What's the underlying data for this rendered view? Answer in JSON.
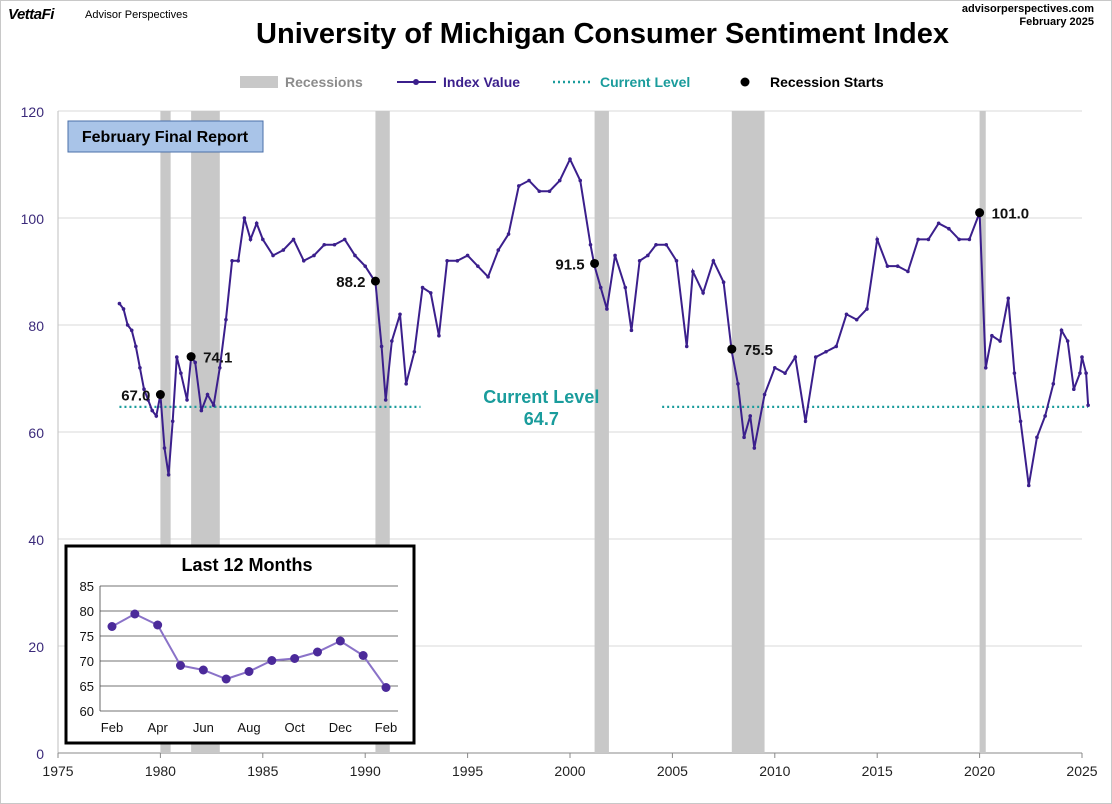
{
  "header": {
    "brand": "VettaFi",
    "brand_sub": "Advisor Perspectives",
    "site": "advisorperspectives.com",
    "date": "February 2025"
  },
  "chart_data": [
    {
      "type": "line",
      "title": "University of Michigan Consumer Sentiment Index",
      "xlim": [
        1975,
        2025
      ],
      "ylim": [
        0,
        120
      ],
      "x_ticks": [
        "1975",
        "1980",
        "1985",
        "1990",
        "1995",
        "2000",
        "2005",
        "2010",
        "2015",
        "2020",
        "2025"
      ],
      "y_ticks": [
        "0",
        "20",
        "40",
        "60",
        "80",
        "100",
        "120"
      ],
      "grid": true,
      "legend": {
        "position": "top",
        "items": [
          {
            "label": "Recessions",
            "color": "#c8c8c8"
          },
          {
            "label": "Index Value",
            "color": "#3b1f8c"
          },
          {
            "label": "Current Level",
            "color": "#1a9c9c"
          },
          {
            "label": "Recession Starts",
            "color": "#000000"
          }
        ]
      },
      "report_label": "February Final Report",
      "current_level": {
        "label": "Current Level",
        "value": 64.7,
        "value_label": "64.7"
      },
      "recessions": [
        {
          "start": 1980.0,
          "end": 1980.5
        },
        {
          "start": 1981.5,
          "end": 1982.9
        },
        {
          "start": 1990.5,
          "end": 1991.2
        },
        {
          "start": 2001.2,
          "end": 2001.9
        },
        {
          "start": 2007.9,
          "end": 2009.5
        },
        {
          "start": 2020.0,
          "end": 2020.3
        }
      ],
      "recession_starts": [
        {
          "x": 1980.0,
          "y": 67.0,
          "label": "67.0",
          "anchor": "left"
        },
        {
          "x": 1981.5,
          "y": 74.1,
          "label": "74.1",
          "anchor": "right"
        },
        {
          "x": 1990.5,
          "y": 88.2,
          "label": "88.2",
          "anchor": "left"
        },
        {
          "x": 2001.2,
          "y": 91.5,
          "label": "91.5",
          "anchor": "left"
        },
        {
          "x": 2007.9,
          "y": 75.5,
          "label": "75.5",
          "anchor": "right"
        },
        {
          "x": 2020.0,
          "y": 101.0,
          "label": "101.0",
          "anchor": "right"
        }
      ],
      "series": [
        {
          "name": "Index Value",
          "color": "#3b1f8c",
          "points": [
            [
              1978.0,
              84
            ],
            [
              1978.2,
              83
            ],
            [
              1978.4,
              80
            ],
            [
              1978.6,
              79
            ],
            [
              1978.8,
              76
            ],
            [
              1979.0,
              72
            ],
            [
              1979.2,
              68
            ],
            [
              1979.4,
              66
            ],
            [
              1979.6,
              64
            ],
            [
              1979.8,
              63
            ],
            [
              1980.0,
              67
            ],
            [
              1980.2,
              57
            ],
            [
              1980.4,
              52
            ],
            [
              1980.6,
              62
            ],
            [
              1980.8,
              74
            ],
            [
              1981.0,
              71
            ],
            [
              1981.3,
              66
            ],
            [
              1981.5,
              74
            ],
            [
              1981.7,
              73
            ],
            [
              1982.0,
              64
            ],
            [
              1982.3,
              67
            ],
            [
              1982.6,
              65
            ],
            [
              1982.9,
              72
            ],
            [
              1983.2,
              81
            ],
            [
              1983.5,
              92
            ],
            [
              1983.8,
              92
            ],
            [
              1984.1,
              100
            ],
            [
              1984.4,
              96
            ],
            [
              1984.7,
              99
            ],
            [
              1985.0,
              96
            ],
            [
              1985.5,
              93
            ],
            [
              1986.0,
              94
            ],
            [
              1986.5,
              96
            ],
            [
              1987.0,
              92
            ],
            [
              1987.5,
              93
            ],
            [
              1988.0,
              95
            ],
            [
              1988.5,
              95
            ],
            [
              1989.0,
              96
            ],
            [
              1989.5,
              93
            ],
            [
              1990.0,
              91
            ],
            [
              1990.5,
              88
            ],
            [
              1990.8,
              76
            ],
            [
              1991.0,
              66
            ],
            [
              1991.3,
              77
            ],
            [
              1991.7,
              82
            ],
            [
              1992.0,
              69
            ],
            [
              1992.4,
              75
            ],
            [
              1992.8,
              87
            ],
            [
              1993.2,
              86
            ],
            [
              1993.6,
              78
            ],
            [
              1994.0,
              92
            ],
            [
              1994.5,
              92
            ],
            [
              1995.0,
              93
            ],
            [
              1995.5,
              91
            ],
            [
              1996.0,
              89
            ],
            [
              1996.5,
              94
            ],
            [
              1997.0,
              97
            ],
            [
              1997.5,
              106
            ],
            [
              1998.0,
              107
            ],
            [
              1998.5,
              105
            ],
            [
              1999.0,
              105
            ],
            [
              1999.5,
              107
            ],
            [
              2000.0,
              111
            ],
            [
              2000.5,
              107
            ],
            [
              2001.0,
              95
            ],
            [
              2001.2,
              91
            ],
            [
              2001.5,
              87
            ],
            [
              2001.8,
              83
            ],
            [
              2002.2,
              93
            ],
            [
              2002.7,
              87
            ],
            [
              2003.0,
              79
            ],
            [
              2003.4,
              92
            ],
            [
              2003.8,
              93
            ],
            [
              2004.2,
              95
            ],
            [
              2004.7,
              95
            ],
            [
              2005.2,
              92
            ],
            [
              2005.7,
              76
            ],
            [
              2006.0,
              90
            ],
            [
              2006.5,
              86
            ],
            [
              2007.0,
              92
            ],
            [
              2007.5,
              88
            ],
            [
              2007.9,
              75
            ],
            [
              2008.2,
              69
            ],
            [
              2008.5,
              59
            ],
            [
              2008.8,
              63
            ],
            [
              2009.0,
              57
            ],
            [
              2009.5,
              67
            ],
            [
              2010.0,
              72
            ],
            [
              2010.5,
              71
            ],
            [
              2011.0,
              74
            ],
            [
              2011.5,
              62
            ],
            [
              2012.0,
              74
            ],
            [
              2012.5,
              75
            ],
            [
              2013.0,
              76
            ],
            [
              2013.5,
              82
            ],
            [
              2014.0,
              81
            ],
            [
              2014.5,
              83
            ],
            [
              2015.0,
              96
            ],
            [
              2015.5,
              91
            ],
            [
              2016.0,
              91
            ],
            [
              2016.5,
              90
            ],
            [
              2017.0,
              96
            ],
            [
              2017.5,
              96
            ],
            [
              2018.0,
              99
            ],
            [
              2018.5,
              98
            ],
            [
              2019.0,
              96
            ],
            [
              2019.5,
              96
            ],
            [
              2020.0,
              101
            ],
            [
              2020.3,
              72
            ],
            [
              2020.6,
              78
            ],
            [
              2021.0,
              77
            ],
            [
              2021.4,
              85
            ],
            [
              2021.7,
              71
            ],
            [
              2022.0,
              62
            ],
            [
              2022.4,
              50
            ],
            [
              2022.8,
              59
            ],
            [
              2023.2,
              63
            ],
            [
              2023.6,
              69
            ],
            [
              2024.0,
              79
            ],
            [
              2024.3,
              77
            ],
            [
              2024.6,
              68
            ],
            [
              2024.9,
              71
            ],
            [
              2025.0,
              74
            ],
            [
              2025.2,
              71
            ],
            [
              2025.3,
              65
            ]
          ]
        }
      ]
    },
    {
      "type": "line",
      "title": "Last 12 Months",
      "categories": [
        "Feb",
        "Mar",
        "Apr",
        "May",
        "Jun",
        "Jul",
        "Aug",
        "Sep",
        "Oct",
        "Nov",
        "Dec",
        "Jan",
        "Feb"
      ],
      "x_tick_labels": [
        "Feb",
        "Apr",
        "Jun",
        "Aug",
        "Oct",
        "Dec",
        "Feb"
      ],
      "ylim": [
        60,
        85
      ],
      "y_ticks": [
        "60",
        "65",
        "70",
        "75",
        "80",
        "85"
      ],
      "grid": true,
      "series": [
        {
          "name": "Index Value",
          "color": "#4b2a9a",
          "values": [
            76.9,
            79.4,
            77.2,
            69.1,
            68.2,
            66.4,
            67.9,
            70.1,
            70.5,
            71.8,
            74.0,
            71.1,
            64.7
          ]
        }
      ]
    }
  ]
}
